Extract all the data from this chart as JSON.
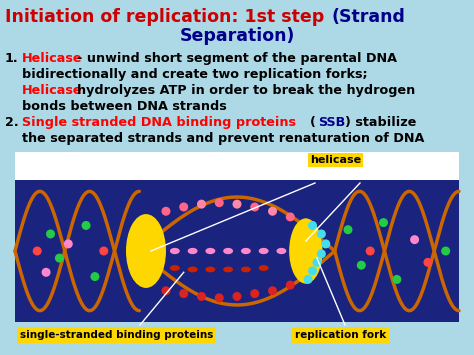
{
  "background_color": "#add8e6",
  "title_red": "Initiation of replication: 1st step ",
  "title_blue1": "(Strand",
  "title_blue2": "Separation)",
  "title_color_red": "#cc0000",
  "title_color_blue": "#00008b",
  "title_fontsize": 12.5,
  "text_fontsize": 9.2,
  "text_color_black": "#000000",
  "text_color_red": "#ff0000",
  "text_color_blue": "#00008b",
  "dna_bg": "#1a237e",
  "dna_color": "#cc6600",
  "helicase_color": "#ffd700",
  "label_bg": "#ffd700"
}
